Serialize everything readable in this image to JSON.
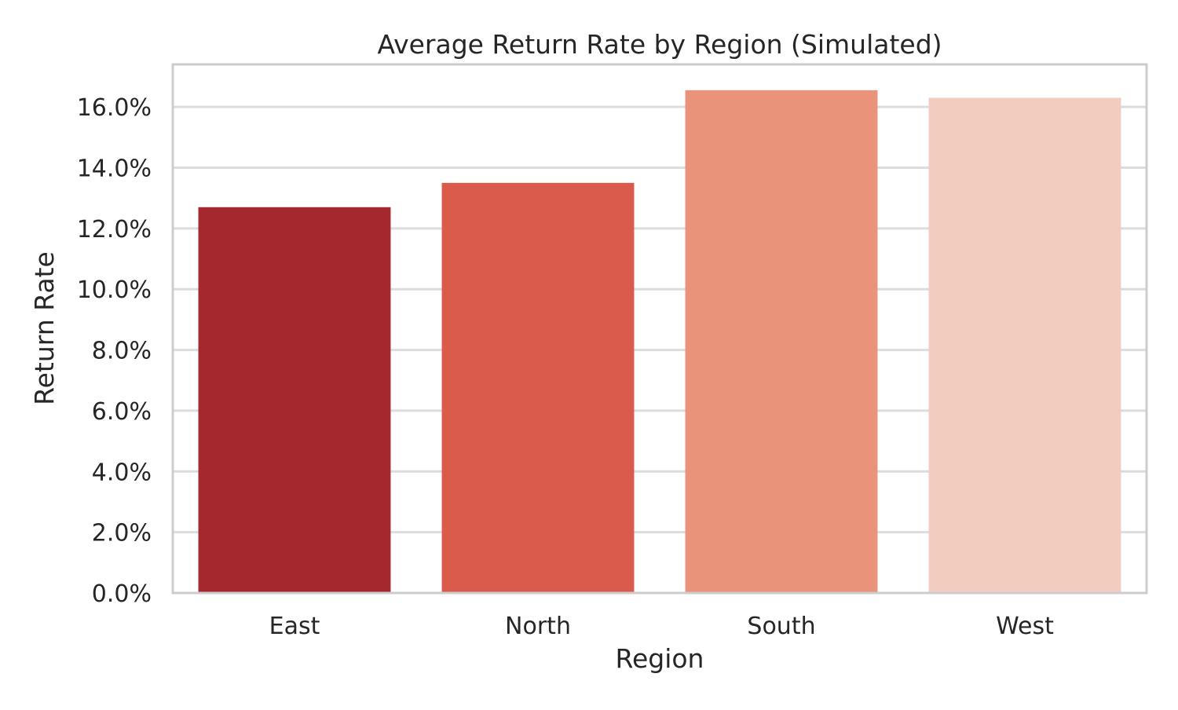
{
  "chart_data": {
    "type": "bar",
    "title": "Average Return Rate by Region (Simulated)",
    "xlabel": "Region",
    "ylabel": "Return Rate",
    "categories": [
      "East",
      "North",
      "South",
      "West"
    ],
    "values": [
      0.127,
      0.135,
      0.1655,
      0.163
    ],
    "colors": [
      "#a4282e",
      "#da5a4b",
      "#e9937b",
      "#f2ccbf"
    ],
    "ylim": [
      0,
      0.174
    ],
    "yticks": [
      0,
      0.02,
      0.04,
      0.06,
      0.08,
      0.1,
      0.12,
      0.14,
      0.16
    ],
    "ytick_labels": [
      "0.0%",
      "2.0%",
      "4.0%",
      "6.0%",
      "8.0%",
      "10.0%",
      "12.0%",
      "14.0%",
      "16.0%"
    ],
    "grid": true,
    "grid_color": "#dcdcdc",
    "frame_color": "#cccccc"
  }
}
